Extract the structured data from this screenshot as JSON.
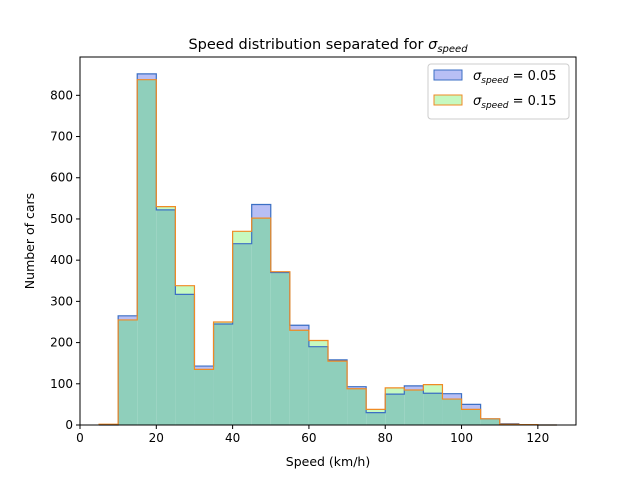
{
  "chart_data": {
    "type": "histogram",
    "title_prefix": "Speed distribution separated for ",
    "title_symbol": "σ",
    "title_subscript": "speed",
    "xlabel": "Speed (km/h)",
    "ylabel": "Number of cars",
    "xlim": [
      0,
      130
    ],
    "ylim": [
      0,
      893
    ],
    "xticks": [
      0,
      20,
      40,
      60,
      80,
      100,
      120
    ],
    "yticks": [
      0,
      100,
      200,
      300,
      400,
      500,
      600,
      700,
      800
    ],
    "bin_edges": [
      5,
      10,
      15,
      20,
      25,
      30,
      35,
      40,
      45,
      50,
      55,
      60,
      65,
      70,
      75,
      80,
      85,
      90,
      95,
      100,
      105,
      110,
      115,
      120,
      125
    ],
    "series": [
      {
        "label_symbol": "σ",
        "label_subscript": "speed",
        "label_value": " = 0.05",
        "fill": "#b8bff5",
        "edge": "#3b6fc4",
        "values": [
          0,
          265,
          852,
          522,
          317,
          143,
          245,
          440,
          535,
          370,
          242,
          190,
          158,
          93,
          30,
          75,
          95,
          77,
          76,
          50,
          15,
          3,
          1,
          0
        ]
      },
      {
        "label_symbol": "σ",
        "label_subscript": "speed",
        "label_value": " = 0.15",
        "fill": "#c6f9c0",
        "edge": "#f08a24",
        "values": [
          2,
          255,
          838,
          530,
          338,
          135,
          250,
          470,
          502,
          372,
          230,
          205,
          155,
          88,
          38,
          90,
          85,
          98,
          63,
          38,
          15,
          2,
          1,
          0
        ]
      }
    ],
    "overlap_fill": "#8fcfbb",
    "legend_position": "top-right",
    "grid": false
  }
}
